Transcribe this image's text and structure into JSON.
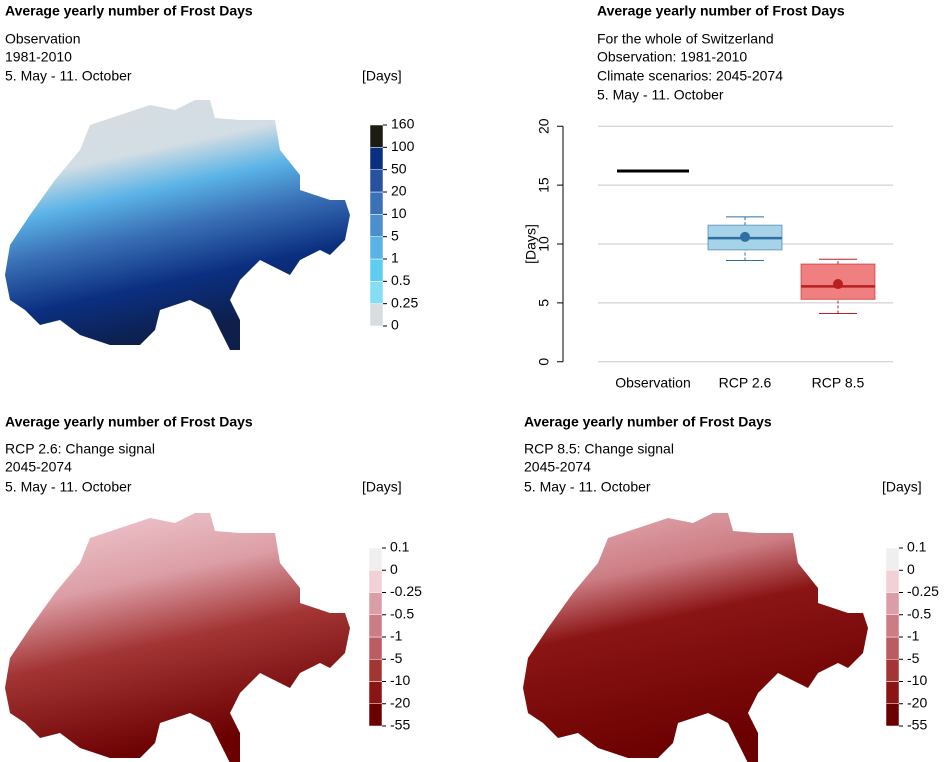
{
  "chart_data": [
    {
      "type": "map",
      "title": "Average yearly number of Frost Days",
      "subtitle": [
        "Observation",
        "1981-2010",
        "5. May - 11. October"
      ],
      "unit": "[Days]",
      "legend_ticks": [
        0,
        0.25,
        0.5,
        1,
        5,
        10,
        20,
        50,
        100,
        160
      ],
      "legend_colors": [
        "#d9dde0",
        "#86def4",
        "#5fcdf2",
        "#5ab3e6",
        "#4b8fcf",
        "#3a71b7",
        "#27529d",
        "#0b2f80",
        "#1c1c12"
      ]
    },
    {
      "type": "box",
      "title": "Average yearly number of Frost Days",
      "subtitle": [
        "For the whole of Switzerland",
        "Observation: 1981-2010",
        "Climate scenarios: 2045-2074",
        "5. May - 11. October"
      ],
      "ylabel": "[Days]",
      "categories": [
        "Observation",
        "RCP 2.6",
        "RCP 8.5"
      ],
      "boxes": [
        {
          "value": 16.2,
          "color": "#000000"
        },
        {
          "min": 8.6,
          "q1": 9.5,
          "median": 10.5,
          "q3": 11.6,
          "max": 12.3,
          "mean": 10.6,
          "color": "#a6d3e8",
          "line_color": "#2e6fa5"
        },
        {
          "min": 4.1,
          "q1": 5.3,
          "median": 6.4,
          "q3": 8.3,
          "max": 8.7,
          "mean": 6.6,
          "color": "#f08080",
          "line_color": "#b82020"
        }
      ],
      "ylim": [
        -0.7,
        20.7
      ],
      "yticks": [
        0,
        5,
        10,
        15,
        20
      ],
      "grid": true
    },
    {
      "type": "map",
      "title": "Average yearly number of Frost Days",
      "subtitle": [
        "RCP 2.6: Change signal",
        "2045-2074",
        "5. May - 11. October"
      ],
      "unit": "[Days]",
      "legend_ticks": [
        -55,
        -20,
        -10,
        -5,
        -1,
        -0.5,
        -0.25,
        0,
        0.1
      ],
      "legend_colors": [
        "#6b0000",
        "#8b1515",
        "#a33535",
        "#bb5c62",
        "#cc7d84",
        "#dc9ea6",
        "#f3cfd6",
        "#efefef"
      ]
    },
    {
      "type": "map",
      "title": "Average yearly number of Frost Days",
      "subtitle": [
        "RCP 8.5: Change signal",
        "2045-2074",
        "5. May - 11. October"
      ],
      "unit": "[Days]",
      "legend_ticks": [
        -55,
        -20,
        -10,
        -5,
        -1,
        -0.5,
        -0.25,
        0,
        0.1
      ],
      "legend_colors": [
        "#6b0000",
        "#8b1515",
        "#a33535",
        "#bb5c62",
        "#cc7d84",
        "#dc9ea6",
        "#f3cfd6",
        "#efefef"
      ]
    }
  ]
}
